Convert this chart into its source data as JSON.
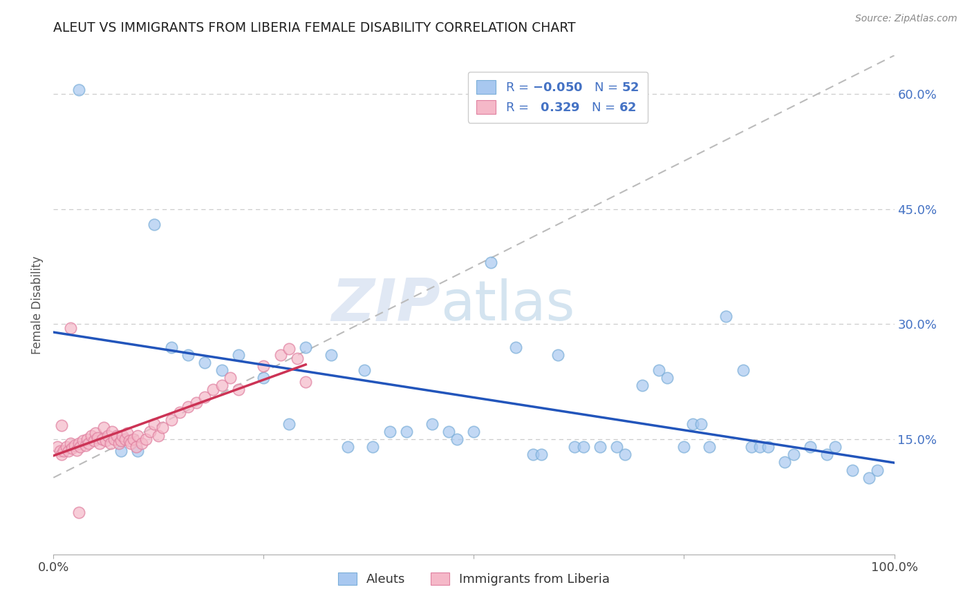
{
  "title": "ALEUT VS IMMIGRANTS FROM LIBERIA FEMALE DISABILITY CORRELATION CHART",
  "source": "Source: ZipAtlas.com",
  "ylabel": "Female Disability",
  "watermark_zip": "ZIP",
  "watermark_atlas": "atlas",
  "aleuts_color": "#a8c8f0",
  "aleuts_edge": "#7aaed8",
  "liberia_color": "#f5b8c8",
  "liberia_edge": "#e080a0",
  "aleuts_line_color": "#2255bb",
  "liberia_line_color": "#cc3355",
  "grid_color": "#cccccc",
  "background": "#ffffff",
  "ytick_color": "#4472c4",
  "ytick_vals": [
    0.15,
    0.3,
    0.45,
    0.6
  ],
  "ytick_labels": [
    "15.0%",
    "30.0%",
    "45.0%",
    "60.0%"
  ],
  "aleuts_n": "52",
  "liberia_r": "0.329",
  "liberia_n": "62",
  "aleuts_x": [
    0.03,
    0.08,
    0.1,
    0.14,
    0.16,
    0.18,
    0.2,
    0.22,
    0.25,
    0.28,
    0.3,
    0.33,
    0.35,
    0.37,
    0.38,
    0.4,
    0.42,
    0.45,
    0.47,
    0.48,
    0.5,
    0.52,
    0.55,
    0.57,
    0.58,
    0.6,
    0.62,
    0.63,
    0.65,
    0.67,
    0.68,
    0.7,
    0.72,
    0.73,
    0.75,
    0.76,
    0.77,
    0.78,
    0.8,
    0.82,
    0.83,
    0.84,
    0.85,
    0.87,
    0.88,
    0.9,
    0.92,
    0.93,
    0.95,
    0.97,
    0.98,
    0.12
  ],
  "aleuts_y": [
    0.605,
    0.135,
    0.135,
    0.27,
    0.26,
    0.25,
    0.24,
    0.26,
    0.23,
    0.17,
    0.27,
    0.26,
    0.14,
    0.24,
    0.14,
    0.16,
    0.16,
    0.17,
    0.16,
    0.15,
    0.16,
    0.38,
    0.27,
    0.13,
    0.13,
    0.26,
    0.14,
    0.14,
    0.14,
    0.14,
    0.13,
    0.22,
    0.24,
    0.23,
    0.14,
    0.17,
    0.17,
    0.14,
    0.31,
    0.24,
    0.14,
    0.14,
    0.14,
    0.12,
    0.13,
    0.14,
    0.13,
    0.14,
    0.11,
    0.1,
    0.11,
    0.43
  ],
  "liberia_x": [
    0.005,
    0.008,
    0.01,
    0.012,
    0.015,
    0.018,
    0.02,
    0.022,
    0.025,
    0.028,
    0.03,
    0.032,
    0.035,
    0.038,
    0.04,
    0.042,
    0.045,
    0.048,
    0.05,
    0.052,
    0.055,
    0.058,
    0.06,
    0.062,
    0.065,
    0.068,
    0.07,
    0.072,
    0.075,
    0.078,
    0.08,
    0.082,
    0.085,
    0.088,
    0.09,
    0.092,
    0.095,
    0.098,
    0.1,
    0.105,
    0.11,
    0.115,
    0.12,
    0.125,
    0.13,
    0.14,
    0.15,
    0.16,
    0.17,
    0.18,
    0.19,
    0.2,
    0.21,
    0.22,
    0.25,
    0.27,
    0.28,
    0.29,
    0.3,
    0.01,
    0.02,
    0.03
  ],
  "liberia_y": [
    0.14,
    0.135,
    0.13,
    0.135,
    0.14,
    0.135,
    0.145,
    0.138,
    0.142,
    0.136,
    0.145,
    0.14,
    0.148,
    0.142,
    0.15,
    0.145,
    0.155,
    0.148,
    0.158,
    0.152,
    0.145,
    0.15,
    0.165,
    0.148,
    0.155,
    0.145,
    0.16,
    0.15,
    0.155,
    0.145,
    0.148,
    0.155,
    0.15,
    0.158,
    0.148,
    0.145,
    0.15,
    0.14,
    0.155,
    0.145,
    0.15,
    0.16,
    0.17,
    0.155,
    0.165,
    0.175,
    0.185,
    0.192,
    0.198,
    0.205,
    0.215,
    0.22,
    0.23,
    0.215,
    0.245,
    0.26,
    0.268,
    0.255,
    0.225,
    0.168,
    0.295,
    0.055
  ]
}
